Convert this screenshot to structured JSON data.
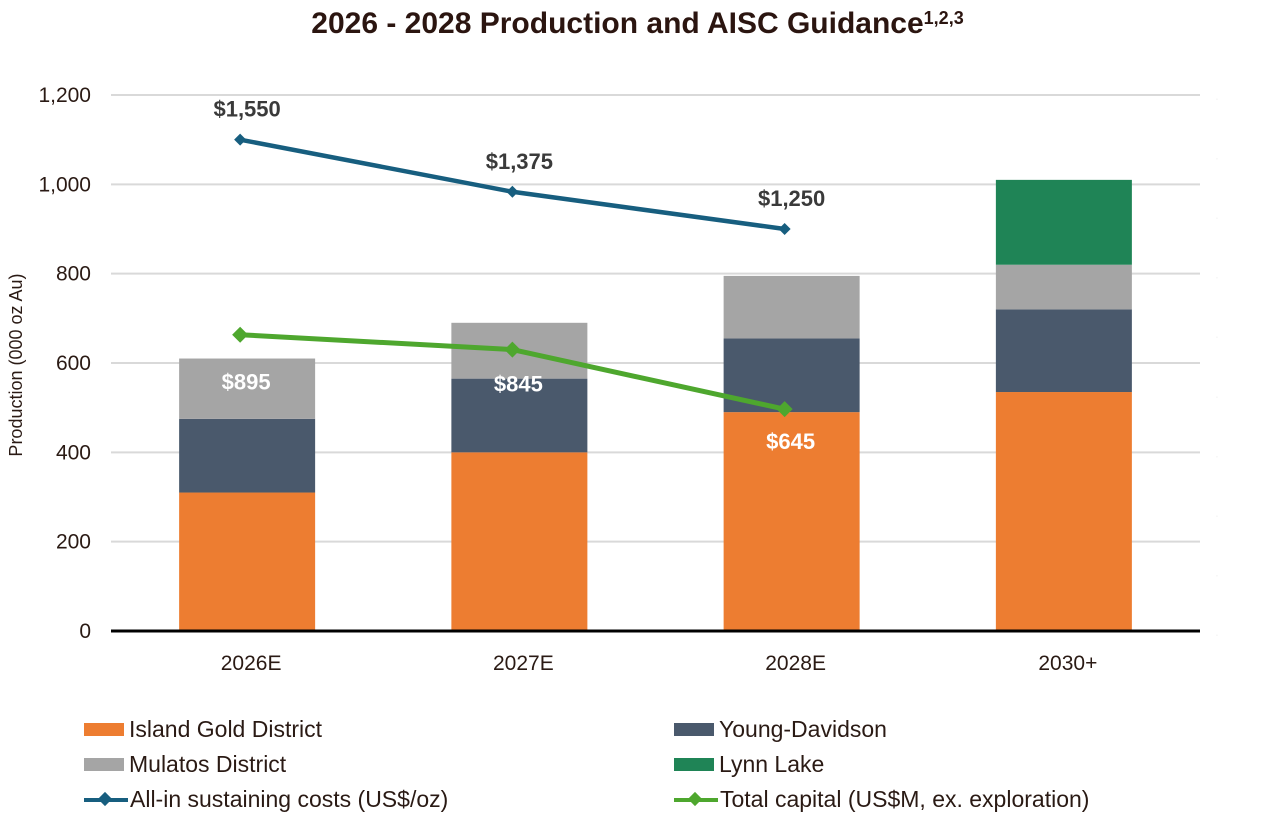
{
  "title": {
    "main": "2026 - 2028 Production and AISC Guidance",
    "superscript": "1,2,3"
  },
  "colors": {
    "island_gold": "#ED7D31",
    "young_davidson": "#4A596C",
    "mulatos": "#A5A5A5",
    "lynn_lake": "#1F8456",
    "aisc": "#175E7F",
    "capital": "#4EA72E",
    "gridline": "#D9D9D9",
    "axis_text": "#2a1a14",
    "aisc_label": "#3a3a3a",
    "capital_label": "#ffffff"
  },
  "chart_data": {
    "type": "bar",
    "subtype": "stacked-bar-with-lines",
    "title": "2026 - 2028 Production and AISC Guidance",
    "title_superscript": "1,2,3",
    "categories": [
      "2026E",
      "2027E",
      "2028E",
      "2030+"
    ],
    "xlabel": "",
    "ylabel": "Production (000 oz Au)",
    "ylim": [
      0,
      1200
    ],
    "yticks": [
      0,
      200,
      400,
      600,
      800,
      1000,
      1200
    ],
    "ytick_labels": [
      "0",
      "200",
      "400",
      "600",
      "800",
      "1,000",
      "1,200"
    ],
    "grid": true,
    "series": [
      {
        "name": "Island Gold District",
        "type": "bar",
        "axis": "left",
        "color_key": "island_gold",
        "values": [
          310,
          400,
          490,
          535
        ]
      },
      {
        "name": "Young-Davidson",
        "type": "bar",
        "axis": "left",
        "color_key": "young_davidson",
        "values": [
          165,
          165,
          165,
          185
        ]
      },
      {
        "name": "Mulatos District",
        "type": "bar",
        "axis": "left",
        "color_key": "mulatos",
        "values": [
          135,
          125,
          140,
          100
        ]
      },
      {
        "name": "Lynn Lake",
        "type": "bar",
        "axis": "left",
        "color_key": "lynn_lake",
        "values": [
          0,
          0,
          0,
          190
        ]
      },
      {
        "name": "All-in sustaining costs (US$/oz)",
        "type": "line",
        "axis": "right",
        "color_key": "aisc",
        "values": [
          1550,
          1375,
          1250,
          null
        ],
        "labels": [
          "$1,550",
          "$1,375",
          "$1,250",
          null
        ]
      },
      {
        "name": "Total capital (US$M, ex. exploration)",
        "type": "line",
        "axis": "right",
        "color_key": "capital",
        "values": [
          895,
          845,
          645,
          null
        ],
        "labels": [
          "$895",
          "$845",
          "$645",
          null
        ]
      }
    ],
    "y2lim": [
      -100,
      1700
    ],
    "y2_tick_labels_visible": false,
    "legend_position": "bottom"
  },
  "legend": [
    {
      "label": "Island Gold District",
      "kind": "bar",
      "color_key": "island_gold"
    },
    {
      "label": "Young-Davidson",
      "kind": "bar",
      "color_key": "young_davidson"
    },
    {
      "label": "Mulatos District",
      "kind": "bar",
      "color_key": "mulatos"
    },
    {
      "label": "Lynn Lake",
      "kind": "bar",
      "color_key": "lynn_lake"
    },
    {
      "label": "All-in sustaining costs (US$/oz)",
      "kind": "line",
      "color_key": "aisc"
    },
    {
      "label": "Total capital (US$M, ex. exploration)",
      "kind": "line",
      "color_key": "capital"
    }
  ]
}
